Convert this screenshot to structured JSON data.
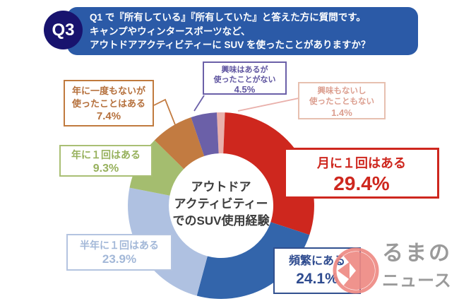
{
  "header": {
    "badge": "Q3",
    "lines": [
      "Q1 で『所有している』『所有していた』と答えた方に質問です。",
      "キャンプやウィンタースポーツなど、",
      "アウトドアアクティビティーに SUV を使ったことがありますか？"
    ],
    "bg_color": "#2B5AA7",
    "badge_color": "#18136E"
  },
  "chart_data": {
    "type": "pie",
    "style": "donut",
    "title": "アウトドアアクティビティーでのSUV使用経験",
    "center_label_lines": [
      "アウトドア",
      "アクティビティー",
      "でのSUV使用経験"
    ],
    "start_angle_deg": -2.6,
    "legend_position": "callouts-around-donut",
    "segments": [
      {
        "id": "none_interest",
        "label": "興味もないし使ったこともない",
        "value": 1.4,
        "pct_text": "1.4%",
        "color": "#E9B0AB"
      },
      {
        "id": "monthly",
        "label": "月に１回はある",
        "value": 29.4,
        "pct_text": "29.4%",
        "color": "#CE271E"
      },
      {
        "id": "frequent",
        "label": "頻繁にある",
        "value": 24.1,
        "pct_text": "24.1%",
        "color": "#3365AB"
      },
      {
        "id": "half_year",
        "label": "半年に１回はある",
        "value": 23.9,
        "pct_text": "23.9%",
        "color": "#AFC1E1"
      },
      {
        "id": "yearly",
        "label": "年に１回はある",
        "value": 9.3,
        "pct_text": "9.3%",
        "color": "#A4BD6F"
      },
      {
        "id": "not_yearly",
        "label": "年に一度もないが使ったことはある",
        "value": 7.4,
        "pct_text": "7.4%",
        "color": "#C27B41"
      },
      {
        "id": "interest_no_use",
        "label": "興味はあるが使ったことがない",
        "value": 4.5,
        "pct_text": "4.5%",
        "color": "#6B60A8"
      }
    ],
    "callouts": {
      "not_yearly": {
        "line1": "年に一度もないが",
        "line2": "使ったことはある",
        "pct": "7.4%"
      },
      "interest_no_use": {
        "line1": "興味はあるが",
        "line2": "使ったことがない",
        "pct": "4.5%"
      },
      "none_interest": {
        "line1": "興味もないし",
        "line2": "使ったこともない",
        "pct": "1.4%"
      },
      "yearly": {
        "line1": "年に１回はある",
        "pct": "9.3%"
      },
      "monthly": {
        "line1": "月に１回はある",
        "pct": "29.4%"
      },
      "half_year": {
        "line1": "半年に１回はある",
        "pct": "23.9%"
      },
      "frequent": {
        "line1": "頻繁にある",
        "pct": "24.1%"
      }
    }
  },
  "watermark": {
    "line1": "るまの",
    "line2": "ニュース",
    "accent_color": "#EE8A84",
    "text_color": "#9A9A9A"
  }
}
